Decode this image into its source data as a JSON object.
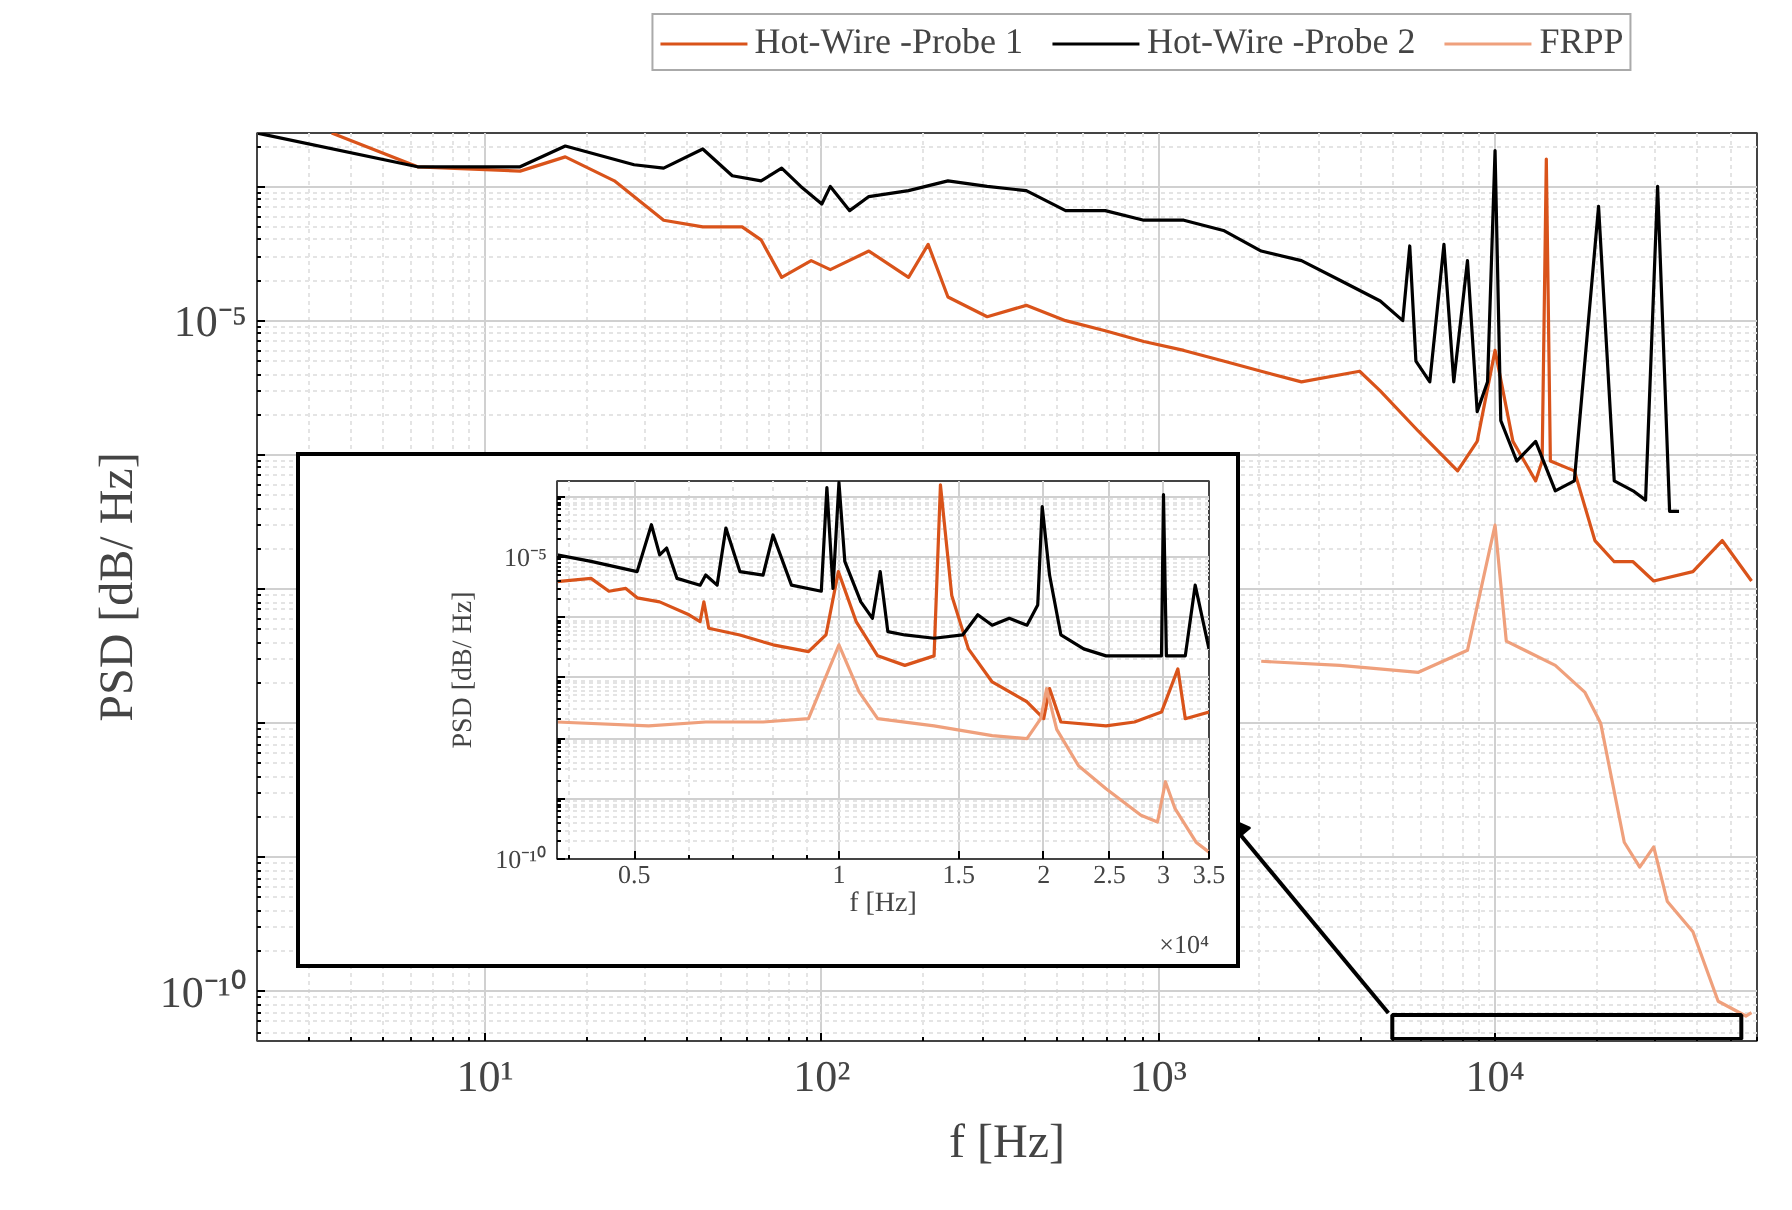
{
  "chart_data": [
    {
      "type": "line",
      "xlabel": "f [Hz]",
      "ylabel": "PSD [dB/ Hz]",
      "log": "xy",
      "grid": true,
      "legend": "top",
      "xlim": [
        2.1,
        60000
      ],
      "ylim": [
        4.3e-11,
        0.00025
      ],
      "xticks": [
        {
          "value": 10,
          "label": "10¹"
        },
        {
          "value": 100,
          "label": "10²"
        },
        {
          "value": 1000,
          "label": "10³"
        },
        {
          "value": 10000,
          "label": "10⁴"
        }
      ],
      "yticks": [
        {
          "value": 0.0001,
          "label": null
        },
        {
          "value": 1e-05,
          "label": "10⁻⁵"
        },
        {
          "value": 1e-06,
          "label": null
        },
        {
          "value": 1e-07,
          "label": null
        },
        {
          "value": 1e-08,
          "label": null
        },
        {
          "value": 1e-09,
          "label": null
        },
        {
          "value": 1e-10,
          "label": "10⁻¹⁰"
        }
      ],
      "series": [
        {
          "name": "Hot-Wire -Probe 1",
          "color": "#d9531a",
          "x": [
            3.5,
            6.3,
            12.7,
            17.3,
            24.2,
            33.9,
            44.3,
            58,
            66,
            76,
            93,
            106,
            138,
            181,
            207,
            237,
            310,
            405,
            530,
            695,
            905,
            1190,
            1560,
            2020,
            2660,
            3960,
            4560,
            5920,
            7740,
            8850,
            10000,
            11300,
            13200,
            13800,
            14200,
            14600,
            17200,
            19800,
            22600,
            25700,
            29600,
            38700,
            47300,
            57800
          ],
          "values": [
            0.00025,
            0.00014,
            0.00013,
            0.000166,
            0.00011,
            5.6e-05,
            5e-05,
            5e-05,
            4e-05,
            2.1e-05,
            2.8e-05,
            2.4e-05,
            3.3e-05,
            2.1e-05,
            3.7e-05,
            1.5e-05,
            1.07e-05,
            1.3e-05,
            1e-05,
            8.4e-06,
            7e-06,
            6e-06,
            5e-06,
            4.2e-06,
            3.5e-06,
            4.2e-06,
            3e-06,
            1.5e-06,
            7.6e-07,
            1.26e-06,
            6e-06,
            1.26e-06,
            6.4e-07,
            9e-07,
            0.00016,
            9e-07,
            7.6e-07,
            2.3e-07,
            1.6e-07,
            1.6e-07,
            1.15e-07,
            1.35e-07,
            2.3e-07,
            1.15e-07
          ]
        },
        {
          "name": "Hot-Wire -Probe 2",
          "color": "#000000",
          "x": [
            2.1,
            6.3,
            12.7,
            17.3,
            27.7,
            33.9,
            44.3,
            54.2,
            66,
            76,
            86.6,
            100,
            106,
            121,
            138,
            181,
            237,
            310,
            405,
            530,
            695,
            905,
            1190,
            1560,
            2020,
            2660,
            3460,
            4560,
            5320,
            5580,
            5820,
            6400,
            7050,
            7540,
            8280,
            8850,
            9500,
            10000,
            10400,
            11600,
            13200,
            15100,
            17200,
            20300,
            22600,
            25700,
            28000,
            30400,
            33000,
            35200
          ],
          "values": [
            0.00025,
            0.00014,
            0.00014,
            0.0002,
            0.000145,
            0.000137,
            0.00019,
            0.00012,
            0.00011,
            0.000137,
            0.0001,
            7.4e-05,
            0.0001,
            6.6e-05,
            8.4e-05,
            9.3e-05,
            0.00011,
            0.0001,
            9.3e-05,
            6.6e-05,
            6.6e-05,
            5.6e-05,
            5.6e-05,
            4.7e-05,
            3.3e-05,
            2.8e-05,
            2e-05,
            1.4e-05,
            1e-05,
            3.6e-05,
            5e-06,
            3.5e-06,
            3.7e-05,
            3.5e-06,
            2.8e-05,
            2.1e-06,
            3.5e-06,
            0.000185,
            1.8e-06,
            9e-07,
            1.26e-06,
            5.4e-07,
            6.4e-07,
            7.1e-05,
            6.4e-07,
            5.4e-07,
            4.6e-07,
            0.0001,
            3.8e-07,
            3.8e-07
          ]
        },
        {
          "name": "FRPP",
          "color": "#efa07c",
          "x": [
            2020,
            3460,
            5920,
            8280,
            10000,
            10800,
            15100,
            18500,
            20600,
            24200,
            26900,
            29600,
            32500,
            38700,
            46000,
            55600,
            57800
          ],
          "values": [
            2.9e-08,
            2.7e-08,
            2.4e-08,
            3.5e-08,
            3e-07,
            4.1e-08,
            2.7e-08,
            1.7e-08,
            1e-08,
            1.3e-09,
            8.5e-10,
            1.2e-09,
            4.7e-10,
            2.8e-10,
            8.5e-11,
            6.6e-11,
            7e-11
          ]
        }
      ]
    },
    {
      "type": "line",
      "xlabel": "f [Hz]",
      "ylabel": "PSD [dB/ Hz]",
      "log": "xy",
      "grid": true,
      "annotations": [
        "×10⁴"
      ],
      "xlim": [
        0.385,
        3.5
      ],
      "ylim": [
        1e-10,
        0.00018
      ],
      "xticks": [
        0.5,
        1,
        1.5,
        2,
        2.5,
        3,
        3.5
      ],
      "yticks": [
        {
          "value": 0.0001,
          "label": null
        },
        {
          "value": 1e-05,
          "label": "10⁻⁵"
        },
        {
          "value": 1e-06,
          "label": null
        },
        {
          "value": 1e-07,
          "label": null
        },
        {
          "value": 1e-08,
          "label": null
        },
        {
          "value": 1e-09,
          "label": null
        },
        {
          "value": 1e-10,
          "label": "10⁻¹⁰"
        }
      ],
      "series": [
        {
          "color": "#d9531a",
          "x": [
            0.385,
            0.432,
            0.459,
            0.486,
            0.505,
            0.545,
            0.602,
            0.625,
            0.633,
            0.6435,
            0.715,
            0.8,
            0.902,
            0.957,
            0.998,
            1.06,
            1.14,
            1.25,
            1.38,
            1.41,
            1.465,
            1.55,
            1.68,
            1.89,
            2.0,
            2.04,
            2.12,
            2.47,
            2.72,
            2.98,
            3.15,
            3.23,
            3.5
          ],
          "values": [
            3.9e-06,
            4.4e-06,
            2.7e-06,
            3e-06,
            2.1e-06,
            1.8e-06,
            1.1e-06,
            8.5e-07,
            1.8e-06,
            6.6e-07,
            5.1e-07,
            3.5e-07,
            2.7e-07,
            5.1e-07,
            5.7e-06,
            8.5e-07,
            2.3e-07,
            1.6e-07,
            2.3e-07,
            0.000155,
            2.3e-06,
            3e-07,
            8.5e-08,
            4e-08,
            2.1e-08,
            6.6e-08,
            1.85e-08,
            1.6e-08,
            1.85e-08,
            2.7e-08,
            1.4e-07,
            2.1e-08,
            2.7e-08
          ]
        },
        {
          "color": "#000000",
          "x": [
            0.385,
            0.432,
            0.505,
            0.53,
            0.545,
            0.558,
            0.578,
            0.625,
            0.637,
            0.662,
            0.682,
            0.715,
            0.7735,
            0.8,
            0.8515,
            0.942,
            0.96,
            0.98,
            1.0,
            1.02,
            1.077,
            1.12,
            1.15,
            1.18,
            1.25,
            1.38,
            1.52,
            1.6,
            1.68,
            1.78,
            1.89,
            1.96,
            1.99,
            2.04,
            2.12,
            2.29,
            2.47,
            2.72,
            2.98,
            3.0,
            3.03,
            3.23,
            3.34,
            3.5
          ],
          "values": [
            1.08e-05,
            8.4e-06,
            5.7e-06,
            3.4e-05,
            1.08e-05,
            1.4e-05,
            4.4e-06,
            3.4e-06,
            5e-06,
            3.4e-06,
            3e-05,
            5.7e-06,
            5e-06,
            2.3e-05,
            3.4e-06,
            2.7e-06,
            0.00014,
            3e-06,
            0.00017,
            8.4e-06,
            1.8e-06,
            9.6e-07,
            5.7e-06,
            5.8e-07,
            5.1e-07,
            4.5e-07,
            5.1e-07,
            1.1e-06,
            7.4e-07,
            9.6e-07,
            7.4e-07,
            1.6e-06,
            6.8e-05,
            5e-06,
            5.1e-07,
            3e-07,
            2.3e-07,
            2.3e-07,
            2.3e-07,
            0.000107,
            2.3e-07,
            2.3e-07,
            3.4e-06,
            3e-07
          ]
        },
        {
          "color": "#efa07c",
          "x": [
            0.385,
            0.525,
            0.637,
            0.7735,
            0.902,
            0.967,
            1.0,
            1.07,
            1.14,
            1.38,
            1.68,
            1.89,
            1.98,
            2.02,
            2.09,
            2.25,
            2.47,
            2.78,
            2.94,
            3.02,
            3.12,
            3.35,
            3.5
          ],
          "values": [
            1.85e-08,
            1.6e-08,
            1.85e-08,
            1.85e-08,
            2.1e-08,
            1.4e-07,
            3.5e-07,
            5.9e-08,
            2.1e-08,
            1.6e-08,
            1.1e-08,
            9.8e-09,
            2.1e-08,
            6.6e-08,
            1.4e-08,
            3.5e-09,
            1.45e-09,
            5.3e-10,
            4.1e-10,
            1.9e-09,
            6.8e-10,
            1.9e-10,
            1.3e-10
          ]
        }
      ]
    }
  ]
}
